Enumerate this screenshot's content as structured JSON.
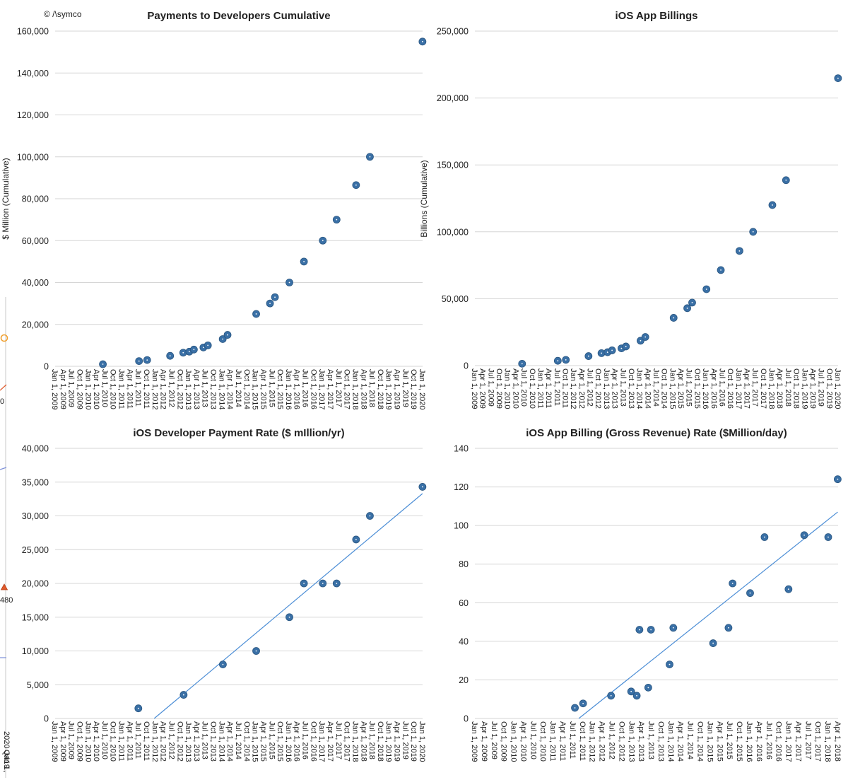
{
  "copyright": "© /\\symco",
  "edge_fragment": {
    "labels": [
      "0",
      "480",
      "Jan 1,",
      "2020",
      "Q419"
    ],
    "colors": {
      "orange": "#f0a030",
      "red": "#e05a2b",
      "blue": "#7b8ed8"
    }
  },
  "colors": {
    "dot": "#3a70a6",
    "trend": "#4c8ed6",
    "grid": "#d6d6d6"
  },
  "chart_data": [
    {
      "id": "payments-cumulative",
      "type": "scatter",
      "title": "Payments to Developers Cumulative",
      "ylabel": "$ Million (Cumulative)",
      "xlabel": "",
      "ylim": [
        0,
        160000
      ],
      "yticks": [
        "0",
        "20,000",
        "40,000",
        "60,000",
        "80,000",
        "100,000",
        "120,000",
        "140,000",
        "160,000"
      ],
      "xlim": [
        "2009-01-01",
        "2020-01-01"
      ],
      "xticks": [
        "Jan 1, 2009",
        "Apr 1, 2009",
        "Jul 1, 2009",
        "Oct 1, 2009",
        "Jan 1, 2010",
        "Apr 1, 2010",
        "Jul 1, 2010",
        "Oct 1, 2010",
        "Jan 1, 2011",
        "Apr 1, 2011",
        "Jul 1, 2011",
        "Oct 1, 2011",
        "Jan 1, 2012",
        "Apr 1, 2012",
        "Jul 1, 2012",
        "Oct 1, 2012",
        "Jan 1, 2013",
        "Apr 1, 2013",
        "Jul 1, 2013",
        "Oct 1, 2013",
        "Jan 1, 2014",
        "Apr 1, 2014",
        "Jul 1, 2014",
        "Oct 1, 2014",
        "Jan 1, 2015",
        "Apr 1, 2015",
        "Jul 1, 2015",
        "Oct 1, 2015",
        "Jan 1, 2016",
        "Apr 1, 2016",
        "Jul 1, 2016",
        "Oct 1, 2016",
        "Jan 1, 2017",
        "Apr 1, 2017",
        "Jul 1, 2017",
        "Oct 1, 2017",
        "Jan 1, 2018",
        "Apr 1, 2018",
        "Jul 1, 2018",
        "Oct 1, 2018",
        "Jan 1, 2019",
        "Apr 1, 2019",
        "Jul 1, 2019",
        "Oct 1, 2019",
        "Jan 1, 2020"
      ],
      "points": [
        {
          "x": "2010-06-07",
          "y": 1000
        },
        {
          "x": "2011-07-07",
          "y": 2500
        },
        {
          "x": "2011-10-04",
          "y": 3000
        },
        {
          "x": "2012-06-11",
          "y": 5000
        },
        {
          "x": "2012-11-01",
          "y": 6500
        },
        {
          "x": "2013-01-07",
          "y": 7000
        },
        {
          "x": "2013-02-26",
          "y": 8000
        },
        {
          "x": "2013-06-10",
          "y": 9000
        },
        {
          "x": "2013-07-29",
          "y": 10000
        },
        {
          "x": "2014-01-07",
          "y": 13000
        },
        {
          "x": "2014-03-01",
          "y": 15000
        },
        {
          "x": "2015-01-08",
          "y": 25000
        },
        {
          "x": "2015-06-08",
          "y": 30000
        },
        {
          "x": "2015-08-01",
          "y": 33000
        },
        {
          "x": "2016-01-06",
          "y": 40000
        },
        {
          "x": "2016-06-13",
          "y": 50000
        },
        {
          "x": "2017-01-05",
          "y": 60000
        },
        {
          "x": "2017-06-05",
          "y": 70000
        },
        {
          "x": "2018-01-04",
          "y": 86500
        },
        {
          "x": "2018-06-04",
          "y": 100000
        },
        {
          "x": "2019-12-31",
          "y": 155000
        }
      ]
    },
    {
      "id": "app-billings",
      "type": "scatter",
      "title": "iOS App Billings",
      "ylabel": "Billions (Cumulative)",
      "xlabel": "",
      "ylim": [
        0,
        250000
      ],
      "yticks": [
        "0",
        "50,000",
        "100,000",
        "150,000",
        "200,000",
        "250,000"
      ],
      "xlim": [
        "2009-01-01",
        "2020-01-01"
      ],
      "xticks": [
        "Jan 1, 2009",
        "Apr 1, 2009",
        "Jul 1, 2009",
        "Oct 1, 2009",
        "Jan 1, 2010",
        "Apr 1, 2010",
        "Jul 1, 2010",
        "Oct 1, 2010",
        "Jan 1, 2011",
        "Apr 1, 2011",
        "Jul 1, 2011",
        "Oct 1, 2011",
        "Jan 1, 2012",
        "Apr 1, 2012",
        "Jul 1, 2012",
        "Oct 1, 2012",
        "Jan 1, 2013",
        "Apr 1, 2013",
        "Jul 1, 2013",
        "Oct 1, 2013",
        "Jan 1, 2014",
        "Apr 1, 2014",
        "Jul 1, 2014",
        "Oct 1, 2014",
        "Jan 1, 2015",
        "Apr 1, 2015",
        "Jul 1, 2015",
        "Oct 1, 2015",
        "Jan 1, 2016",
        "Apr 1, 2016",
        "Jul 1, 2016",
        "Oct 1, 2016",
        "Jan 1, 2017",
        "Apr 1, 2017",
        "Jul 1, 2017",
        "Oct 1, 2017",
        "Jan 1, 2018",
        "Apr 1, 2018",
        "Jul 1, 2018",
        "Oct 1, 2018",
        "Jan 1, 2019",
        "Apr 1, 2019",
        "Jul 1, 2019",
        "Oct 1, 2019",
        "Jan 1, 2020"
      ],
      "points": [
        {
          "x": "2010-06-07",
          "y": 1400
        },
        {
          "x": "2011-07-07",
          "y": 3600
        },
        {
          "x": "2011-10-04",
          "y": 4300
        },
        {
          "x": "2012-06-11",
          "y": 7100
        },
        {
          "x": "2012-11-01",
          "y": 9300
        },
        {
          "x": "2013-01-07",
          "y": 10000
        },
        {
          "x": "2013-02-26",
          "y": 11400
        },
        {
          "x": "2013-06-10",
          "y": 12900
        },
        {
          "x": "2013-07-29",
          "y": 14300
        },
        {
          "x": "2014-01-07",
          "y": 18600
        },
        {
          "x": "2014-03-01",
          "y": 21400
        },
        {
          "x": "2015-01-08",
          "y": 35700
        },
        {
          "x": "2015-06-08",
          "y": 42900
        },
        {
          "x": "2015-08-01",
          "y": 47100
        },
        {
          "x": "2016-01-06",
          "y": 57100
        },
        {
          "x": "2016-06-13",
          "y": 71400
        },
        {
          "x": "2017-01-05",
          "y": 85700
        },
        {
          "x": "2017-06-05",
          "y": 100000
        },
        {
          "x": "2018-01-04",
          "y": 120000
        },
        {
          "x": "2018-06-04",
          "y": 138600
        },
        {
          "x": "2019-12-31",
          "y": 214800
        }
      ]
    },
    {
      "id": "payment-rate",
      "type": "scatter",
      "title": "iOS Developer Payment Rate ($ mIllion/yr)",
      "ylabel": "",
      "xlabel": "",
      "ylim": [
        0,
        40000
      ],
      "yticks": [
        "0",
        "5,000",
        "10,000",
        "15,000",
        "20,000",
        "25,000",
        "30,000",
        "35,000",
        "40,000"
      ],
      "xlim": [
        "2009-01-01",
        "2020-01-01"
      ],
      "xticks": [
        "Jan 1, 2009",
        "Apr 1, 2009",
        "Jul 1, 2009",
        "Oct 1, 2009",
        "Jan 1, 2010",
        "Apr 1, 2010",
        "Jul 1, 2010",
        "Oct 1, 2010",
        "Jan 1, 2011",
        "Apr 1, 2011",
        "Jul 1, 2011",
        "Oct 1, 2011",
        "Jan 1, 2012",
        "Apr 1, 2012",
        "Jul 1, 2012",
        "Oct 1, 2012",
        "Jan 1, 2013",
        "Apr 1, 2013",
        "Jul 1, 2013",
        "Oct 1, 2013",
        "Jan 1, 2014",
        "Apr 1, 2014",
        "Jul 1, 2014",
        "Oct 1, 2014",
        "Jan 1, 2015",
        "Apr 1, 2015",
        "Jul 1, 2015",
        "Oct 1, 2015",
        "Jan 1, 2016",
        "Apr 1, 2016",
        "Jul 1, 2016",
        "Oct 1, 2016",
        "Jan 1, 2017",
        "Apr 1, 2017",
        "Jul 1, 2017",
        "Oct 1, 2017",
        "Jan 1, 2018",
        "Apr 1, 2018",
        "Jul 1, 2018",
        "Oct 1, 2018",
        "Jan 1, 2019",
        "Apr 1, 2019",
        "Jul 1, 2019",
        "Oct 1, 2019",
        "Jan 1, 2020"
      ],
      "points": [
        {
          "x": "2011-06-30",
          "y": 1500
        },
        {
          "x": "2012-11-06",
          "y": 3500
        },
        {
          "x": "2014-01-09",
          "y": 8000
        },
        {
          "x": "2015-01-08",
          "y": 10000
        },
        {
          "x": "2016-01-06",
          "y": 15000
        },
        {
          "x": "2016-06-13",
          "y": 20000
        },
        {
          "x": "2017-01-05",
          "y": 20000
        },
        {
          "x": "2017-06-05",
          "y": 20000
        },
        {
          "x": "2018-01-04",
          "y": 26500
        },
        {
          "x": "2018-06-04",
          "y": 30000
        },
        {
          "x": "2019-12-31",
          "y": 34300
        }
      ],
      "trendline": {
        "x": [
          "2011-12-20",
          "2019-12-31"
        ],
        "y": [
          0,
          33300
        ]
      }
    },
    {
      "id": "billing-rate",
      "type": "scatter",
      "title": "iOS App Billing (Gross Revenue) Rate ($Million/day)",
      "ylabel": "",
      "xlabel": "",
      "ylim": [
        0,
        140
      ],
      "yticks": [
        "0",
        "20",
        "40",
        "60",
        "80",
        "100",
        "120",
        "140"
      ],
      "xlim": [
        "2009-01-01",
        "2018-04-01"
      ],
      "xticks": [
        "Jan 1, 2009",
        "Apr 1, 2009",
        "Jul 1, 2009",
        "Oct 1, 2009",
        "Jan 1, 2010",
        "Apr 1, 2010",
        "Jul 1, 2010",
        "Oct 1, 2010",
        "Jan 1, 2011",
        "Apr 1, 2011",
        "Jul 1, 2011",
        "Oct 1, 2011",
        "Jan 1, 2012",
        "Apr 1, 2012",
        "Jul 1, 2012",
        "Oct 1, 2012",
        "Jan 1, 2013",
        "Apr 1, 2013",
        "Jul 1, 2013",
        "Oct 1, 2013",
        "Jan 1, 2014",
        "Apr 1, 2014",
        "Jul 1, 2014",
        "Oct 1, 2014",
        "Jan 1, 2015",
        "Apr 1, 2015",
        "Jul 1, 2015",
        "Oct 1, 2015",
        "Jan 1, 2016",
        "Apr 1, 2016",
        "Jul 1, 2016",
        "Oct 1, 2016",
        "Jan 1, 2017",
        "Apr 1, 2017",
        "Jul 1, 2017",
        "Oct 1, 2017",
        "Jan 1, 2018",
        "Apr 1, 2018"
      ],
      "points": [
        {
          "x": "2011-07-20",
          "y": 5.5
        },
        {
          "x": "2011-10-04",
          "y": 7.8
        },
        {
          "x": "2012-06-20",
          "y": 11.8
        },
        {
          "x": "2012-12-24",
          "y": 14
        },
        {
          "x": "2013-02-14",
          "y": 11.8
        },
        {
          "x": "2013-03-11",
          "y": 46
        },
        {
          "x": "2013-06-01",
          "y": 16
        },
        {
          "x": "2013-06-26",
          "y": 46
        },
        {
          "x": "2013-12-16",
          "y": 28
        },
        {
          "x": "2014-01-20",
          "y": 47
        },
        {
          "x": "2015-01-25",
          "y": 39
        },
        {
          "x": "2015-06-17",
          "y": 47
        },
        {
          "x": "2015-07-25",
          "y": 70
        },
        {
          "x": "2016-01-04",
          "y": 65
        },
        {
          "x": "2016-05-17",
          "y": 94
        },
        {
          "x": "2016-12-26",
          "y": 67
        },
        {
          "x": "2017-05-21",
          "y": 95
        },
        {
          "x": "2017-12-30",
          "y": 94
        },
        {
          "x": "2018-03-28",
          "y": 124
        }
      ],
      "trendline": {
        "x": [
          "2011-08-25",
          "2018-03-28"
        ],
        "y": [
          0,
          107
        ]
      }
    }
  ]
}
